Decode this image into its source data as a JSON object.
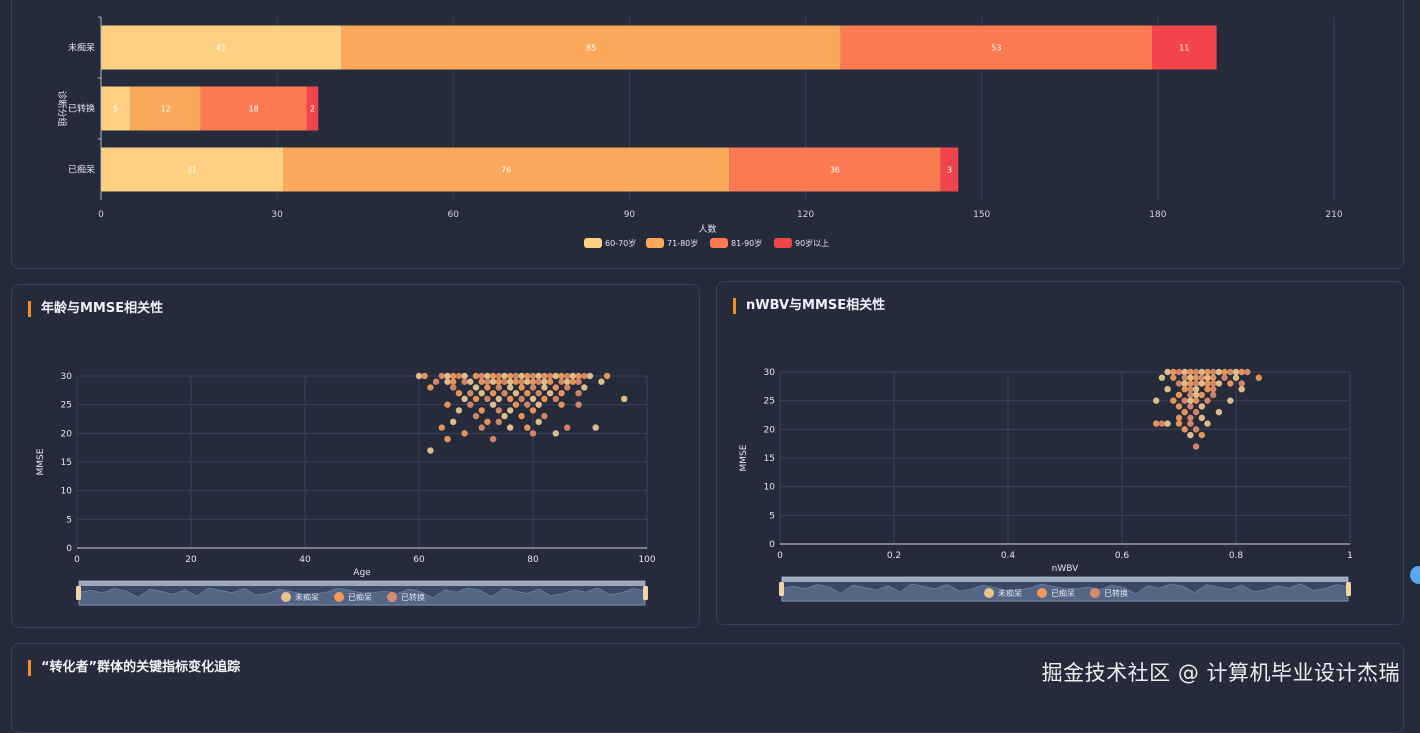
{
  "panels": {
    "age_mmse_title": "年龄与MMSE相关性",
    "nwbv_mmse_title": "nWBV与MMSE相关性",
    "converter_title": "“转化者”群体的关键指标变化追踪"
  },
  "watermark": "掘金技术社区 @ 计算机毕业设计杰瑞",
  "colors": {
    "age_60_70": "#fdd083",
    "age_71_80": "#fca85b",
    "age_81_90": "#fb7a52",
    "age_90_plus": "#f1454b",
    "dot_undemented": "#e8c48e",
    "dot_demented": "#ee9a5a",
    "dot_converted": "#d98a6a",
    "accent": "#f28c28"
  },
  "chart_data": [
    {
      "type": "bar",
      "orientation": "horizontal",
      "stacked": true,
      "categories": [
        "未痴呆",
        "已转换",
        "已痴呆"
      ],
      "series": [
        {
          "name": "60-70岁",
          "values": [
            41,
            5,
            31
          ]
        },
        {
          "name": "71-80岁",
          "values": [
            85,
            12,
            76
          ]
        },
        {
          "name": "81-90岁",
          "values": [
            53,
            18,
            36
          ]
        },
        {
          "name": "90岁以上",
          "values": [
            11,
            2,
            3
          ]
        }
      ],
      "xlabel": "人数",
      "ylabel": "诊断分组",
      "xlim": [
        0,
        210
      ],
      "xticks": [
        "0",
        "30",
        "60",
        "90",
        "120",
        "150",
        "180",
        "210"
      ],
      "legend_position": "bottom"
    },
    {
      "type": "scatter",
      "xlabel": "Age",
      "ylabel": "MMSE",
      "xlim": [
        0,
        100
      ],
      "ylim": [
        0,
        30
      ],
      "xticks": [
        "0",
        "20",
        "40",
        "60",
        "80",
        "100"
      ],
      "yticks": [
        "0",
        "5",
        "10",
        "15",
        "20",
        "25",
        "30"
      ],
      "legend": [
        "未痴呆",
        "已痴呆",
        "已转换"
      ],
      "legend_position": "bottom",
      "points": [
        [
          60,
          30
        ],
        [
          61,
          30
        ],
        [
          64,
          30
        ],
        [
          65,
          30
        ],
        [
          66,
          30
        ],
        [
          67,
          30
        ],
        [
          68,
          30
        ],
        [
          70,
          30
        ],
        [
          71,
          30
        ],
        [
          72,
          30
        ],
        [
          73,
          30
        ],
        [
          74,
          30
        ],
        [
          75,
          30
        ],
        [
          76,
          30
        ],
        [
          77,
          30
        ],
        [
          78,
          30
        ],
        [
          79,
          30
        ],
        [
          80,
          30
        ],
        [
          81,
          30
        ],
        [
          82,
          30
        ],
        [
          83,
          30
        ],
        [
          84,
          30
        ],
        [
          85,
          30
        ],
        [
          86,
          30
        ],
        [
          87,
          30
        ],
        [
          88,
          30
        ],
        [
          89,
          30
        ],
        [
          90,
          30
        ],
        [
          93,
          30
        ],
        [
          63,
          29
        ],
        [
          65,
          29
        ],
        [
          66,
          29
        ],
        [
          68,
          29
        ],
        [
          69,
          29
        ],
        [
          71,
          29
        ],
        [
          72,
          29
        ],
        [
          73,
          29
        ],
        [
          74,
          29
        ],
        [
          75,
          29
        ],
        [
          76,
          29
        ],
        [
          77,
          29
        ],
        [
          78,
          29
        ],
        [
          79,
          29
        ],
        [
          80,
          29
        ],
        [
          81,
          29
        ],
        [
          82,
          29
        ],
        [
          83,
          29
        ],
        [
          85,
          29
        ],
        [
          86,
          29
        ],
        [
          87,
          29
        ],
        [
          88,
          29
        ],
        [
          92,
          29
        ],
        [
          62,
          28
        ],
        [
          66,
          28
        ],
        [
          70,
          28
        ],
        [
          72,
          28
        ],
        [
          74,
          28
        ],
        [
          76,
          28
        ],
        [
          78,
          28
        ],
        [
          80,
          28
        ],
        [
          82,
          28
        ],
        [
          84,
          28
        ],
        [
          86,
          28
        ],
        [
          89,
          28
        ],
        [
          67,
          27
        ],
        [
          69,
          27
        ],
        [
          71,
          27
        ],
        [
          73,
          27
        ],
        [
          75,
          27
        ],
        [
          77,
          27
        ],
        [
          79,
          27
        ],
        [
          81,
          27
        ],
        [
          83,
          27
        ],
        [
          85,
          27
        ],
        [
          88,
          27
        ],
        [
          68,
          26
        ],
        [
          70,
          26
        ],
        [
          72,
          26
        ],
        [
          74,
          26
        ],
        [
          76,
          26
        ],
        [
          78,
          26
        ],
        [
          80,
          26
        ],
        [
          82,
          26
        ],
        [
          84,
          26
        ],
        [
          96,
          26
        ],
        [
          65,
          25
        ],
        [
          69,
          25
        ],
        [
          73,
          25
        ],
        [
          77,
          25
        ],
        [
          79,
          25
        ],
        [
          81,
          25
        ],
        [
          85,
          25
        ],
        [
          88,
          25
        ],
        [
          67,
          24
        ],
        [
          71,
          24
        ],
        [
          74,
          24
        ],
        [
          76,
          24
        ],
        [
          80,
          24
        ],
        [
          70,
          23
        ],
        [
          75,
          23
        ],
        [
          78,
          23
        ],
        [
          82,
          23
        ],
        [
          66,
          22
        ],
        [
          72,
          22
        ],
        [
          74,
          22
        ],
        [
          81,
          22
        ],
        [
          64,
          21
        ],
        [
          71,
          21
        ],
        [
          76,
          21
        ],
        [
          79,
          21
        ],
        [
          86,
          21
        ],
        [
          91,
          21
        ],
        [
          68,
          20
        ],
        [
          80,
          20
        ],
        [
          84,
          20
        ],
        [
          65,
          19
        ],
        [
          73,
          19
        ],
        [
          62,
          17
        ]
      ]
    },
    {
      "type": "scatter",
      "xlabel": "nWBV",
      "ylabel": "MMSE",
      "xlim": [
        0,
        1
      ],
      "ylim": [
        0,
        30
      ],
      "xticks": [
        "0",
        "0.2",
        "0.4",
        "0.6",
        "0.8",
        "1"
      ],
      "yticks": [
        "0",
        "5",
        "10",
        "15",
        "20",
        "25",
        "30"
      ],
      "legend": [
        "未痴呆",
        "已痴呆",
        "已转换"
      ],
      "legend_position": "bottom",
      "points": [
        [
          0.68,
          30
        ],
        [
          0.69,
          30
        ],
        [
          0.7,
          30
        ],
        [
          0.71,
          30
        ],
        [
          0.72,
          30
        ],
        [
          0.73,
          30
        ],
        [
          0.74,
          30
        ],
        [
          0.75,
          30
        ],
        [
          0.76,
          30
        ],
        [
          0.77,
          30
        ],
        [
          0.78,
          30
        ],
        [
          0.79,
          30
        ],
        [
          0.8,
          30
        ],
        [
          0.81,
          30
        ],
        [
          0.82,
          30
        ],
        [
          0.67,
          29
        ],
        [
          0.69,
          29
        ],
        [
          0.71,
          29
        ],
        [
          0.72,
          29
        ],
        [
          0.73,
          29
        ],
        [
          0.74,
          29
        ],
        [
          0.75,
          29
        ],
        [
          0.76,
          29
        ],
        [
          0.78,
          29
        ],
        [
          0.8,
          29
        ],
        [
          0.84,
          29
        ],
        [
          0.7,
          28
        ],
        [
          0.71,
          28
        ],
        [
          0.72,
          28
        ],
        [
          0.73,
          28
        ],
        [
          0.74,
          28
        ],
        [
          0.75,
          28
        ],
        [
          0.76,
          28
        ],
        [
          0.77,
          28
        ],
        [
          0.79,
          28
        ],
        [
          0.81,
          28
        ],
        [
          0.68,
          27
        ],
        [
          0.71,
          27
        ],
        [
          0.72,
          27
        ],
        [
          0.73,
          27
        ],
        [
          0.75,
          27
        ],
        [
          0.76,
          27
        ],
        [
          0.81,
          27
        ],
        [
          0.7,
          26
        ],
        [
          0.72,
          26
        ],
        [
          0.73,
          26
        ],
        [
          0.74,
          26
        ],
        [
          0.76,
          26
        ],
        [
          0.66,
          25
        ],
        [
          0.69,
          25
        ],
        [
          0.71,
          25
        ],
        [
          0.72,
          25
        ],
        [
          0.73,
          25
        ],
        [
          0.75,
          25
        ],
        [
          0.79,
          25
        ],
        [
          0.7,
          24
        ],
        [
          0.72,
          24
        ],
        [
          0.74,
          24
        ],
        [
          0.71,
          23
        ],
        [
          0.73,
          23
        ],
        [
          0.77,
          23
        ],
        [
          0.7,
          22
        ],
        [
          0.72,
          22
        ],
        [
          0.74,
          22
        ],
        [
          0.66,
          21
        ],
        [
          0.67,
          21
        ],
        [
          0.68,
          21
        ],
        [
          0.7,
          21
        ],
        [
          0.72,
          21
        ],
        [
          0.75,
          21
        ],
        [
          0.71,
          20
        ],
        [
          0.73,
          20
        ],
        [
          0.72,
          19
        ],
        [
          0.74,
          19
        ],
        [
          0.73,
          17
        ]
      ]
    }
  ]
}
